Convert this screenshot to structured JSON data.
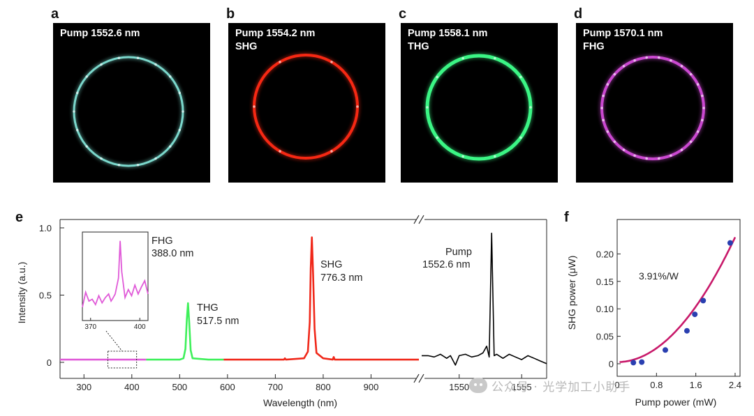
{
  "panels": {
    "a": {
      "letter": "a",
      "line1": "Pump 1552.6 nm",
      "line2": "",
      "color": "#7fe0d4"
    },
    "b": {
      "letter": "b",
      "line1": "Pump 1554.2 nm",
      "line2": "SHG",
      "color": "#ff2a14"
    },
    "c": {
      "letter": "c",
      "line1": "Pump 1558.1 nm",
      "line2": "THG",
      "color": "#3dff8a"
    },
    "d": {
      "letter": "d",
      "line1": "Pump 1570.1 nm",
      "line2": "FHG",
      "color": "#d24bd8"
    }
  },
  "watermark": "公众号 · 光学加工小助手",
  "chart_data": [
    {
      "id": "e",
      "letter": "e",
      "type": "line",
      "ylabel": "Intensity (a.u.)",
      "xlabel": "Wavelength (nm)",
      "ylim": [
        0,
        1.0
      ],
      "yticks": [
        "0",
        "0.5",
        "1.0"
      ],
      "segments": [
        {
          "xlim": [
            250,
            1000
          ],
          "xticks": [
            "300",
            "400",
            "500",
            "600",
            "700",
            "800",
            "900"
          ],
          "series": [
            {
              "color": "#e05ad8",
              "x": [
                250,
                300,
                350,
                400,
                430
              ],
              "y": [
                0.02,
                0.02,
                0.02,
                0.02,
                0.02
              ]
            },
            {
              "color": "#3ef05a",
              "x": [
                430,
                500,
                508,
                512,
                515,
                517.5,
                520,
                523,
                527,
                560,
                592
              ],
              "y": [
                0.02,
                0.02,
                0.03,
                0.1,
                0.32,
                0.44,
                0.3,
                0.09,
                0.03,
                0.02,
                0.02
              ]
            },
            {
              "color": "#f0281a",
              "x": [
                592,
                700,
                718,
                720,
                722,
                760,
                768,
                772,
                774,
                776.3,
                779,
                782,
                786,
                800,
                820,
                822,
                824,
                900,
                1000
              ],
              "y": [
                0.02,
                0.02,
                0.02,
                0.03,
                0.02,
                0.03,
                0.08,
                0.3,
                0.7,
                0.93,
                0.65,
                0.25,
                0.07,
                0.03,
                0.02,
                0.04,
                0.02,
                0.02,
                0.02
              ]
            }
          ]
        },
        {
          "xlim": [
            1547,
            1557
          ],
          "xticks": [
            "1550",
            "1555"
          ],
          "series": [
            {
              "color": "#000000",
              "x": [
                1547,
                1547.5,
                1548,
                1548.5,
                1549,
                1549.3,
                1549.7,
                1550,
                1550.5,
                1551,
                1551.5,
                1551.9,
                1552.2,
                1552.4,
                1552.6,
                1552.8,
                1553,
                1553.5,
                1554,
                1554.5,
                1555,
                1555.5,
                1556,
                1556.5,
                1557
              ],
              "y": [
                0.05,
                0.05,
                0.04,
                0.06,
                0.03,
                0.05,
                -0.02,
                0.05,
                0.06,
                0.04,
                0.05,
                0.07,
                0.12,
                0.04,
                0.96,
                0.05,
                0.06,
                0.03,
                0.06,
                0.04,
                0.02,
                0.05,
                0.03,
                0.01,
                -0.01
              ]
            }
          ]
        }
      ],
      "annotations": [
        {
          "name": "FHG",
          "text1": "FHG",
          "text2": "388.0 nm"
        },
        {
          "name": "THG",
          "text1": "THG",
          "text2": "517.5 nm"
        },
        {
          "name": "SHG",
          "text1": "SHG",
          "text2": "776.3 nm"
        },
        {
          "name": "Pump",
          "text1": "Pump",
          "text2": "1552.6 nm"
        }
      ],
      "inset": {
        "xlim": [
          365,
          405
        ],
        "xticks": [
          "370",
          "400"
        ],
        "color": "#e05ad8",
        "x": [
          365,
          367,
          369,
          371,
          373,
          375,
          377,
          379,
          381,
          382.5,
          383.5,
          385,
          387,
          388,
          389,
          391,
          393,
          395,
          397,
          399,
          401,
          403,
          405
        ],
        "y": [
          0.15,
          0.32,
          0.22,
          0.24,
          0.18,
          0.28,
          0.2,
          0.26,
          0.3,
          0.22,
          0.25,
          0.3,
          0.48,
          0.9,
          0.55,
          0.26,
          0.35,
          0.28,
          0.4,
          0.3,
          0.38,
          0.45,
          0.3
        ]
      }
    },
    {
      "id": "f",
      "letter": "f",
      "type": "scatter",
      "xlabel": "Pump power (mW)",
      "ylabel": "SHG power (μW)",
      "xlim": [
        0,
        2.5
      ],
      "ylim": [
        0,
        0.25
      ],
      "xticks": [
        "0",
        "0.8",
        "1.6",
        "2.4"
      ],
      "yticks": [
        "0",
        "0.05",
        "0.10",
        "0.15",
        "0.20"
      ],
      "annotation": "3.91%/W",
      "points_color": "#2a3fb0",
      "fit_color": "#c8196a",
      "points": [
        [
          0.33,
          0.002
        ],
        [
          0.5,
          0.003
        ],
        [
          0.98,
          0.025
        ],
        [
          1.42,
          0.06
        ],
        [
          1.58,
          0.09
        ],
        [
          1.75,
          0.115
        ],
        [
          2.3,
          0.22
        ]
      ],
      "fit": {
        "a": 0.0395,
        "b": 0.003
      }
    }
  ]
}
